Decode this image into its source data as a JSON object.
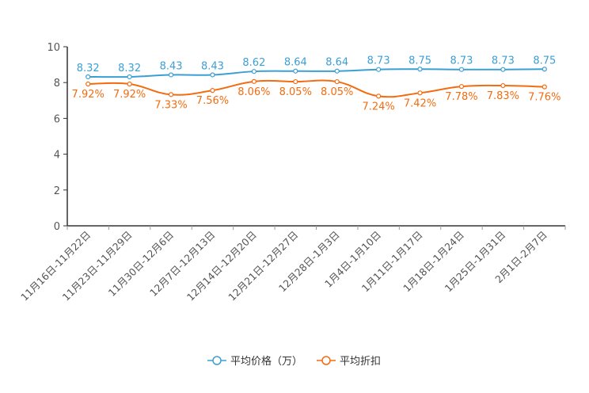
{
  "chart_data": {
    "type": "line",
    "categories": [
      "11月16日-11月22日",
      "11月23日-11月29日",
      "11月30日-12月6日",
      "12月7日-12月13日",
      "12月14日-12月20日",
      "12月21日-12月27日",
      "12月28日-1月3日",
      "1月4日-1月10日",
      "1月11日-1月17日",
      "1月18日-1月24日",
      "1月25日-1月31日",
      "2月1日-2月7日"
    ],
    "series": [
      {
        "name": "平均价格（万）",
        "color": "#3c9fd4",
        "values": [
          8.32,
          8.32,
          8.43,
          8.43,
          8.62,
          8.64,
          8.64,
          8.73,
          8.75,
          8.73,
          8.73,
          8.75
        ],
        "labels": [
          "8.32",
          "8.32",
          "8.43",
          "8.43",
          "8.62",
          "8.64",
          "8.64",
          "8.73",
          "8.75",
          "8.73",
          "8.73",
          "8.75"
        ]
      },
      {
        "name": "平均折扣",
        "color": "#f36c10",
        "values": [
          7.92,
          7.92,
          7.33,
          7.56,
          8.06,
          8.05,
          8.05,
          7.24,
          7.42,
          7.78,
          7.83,
          7.76
        ],
        "labels": [
          "7.92%",
          "7.92%",
          "7.33%",
          "7.56%",
          "8.06%",
          "8.05%",
          "8.05%",
          "7.24%",
          "7.42%",
          "7.78%",
          "7.83%",
          "7.76%"
        ]
      }
    ],
    "yticks": [
      "0",
      "2",
      "4",
      "6",
      "8",
      "10"
    ],
    "ylim": [
      0,
      10
    ],
    "legend_position": "bottom"
  }
}
